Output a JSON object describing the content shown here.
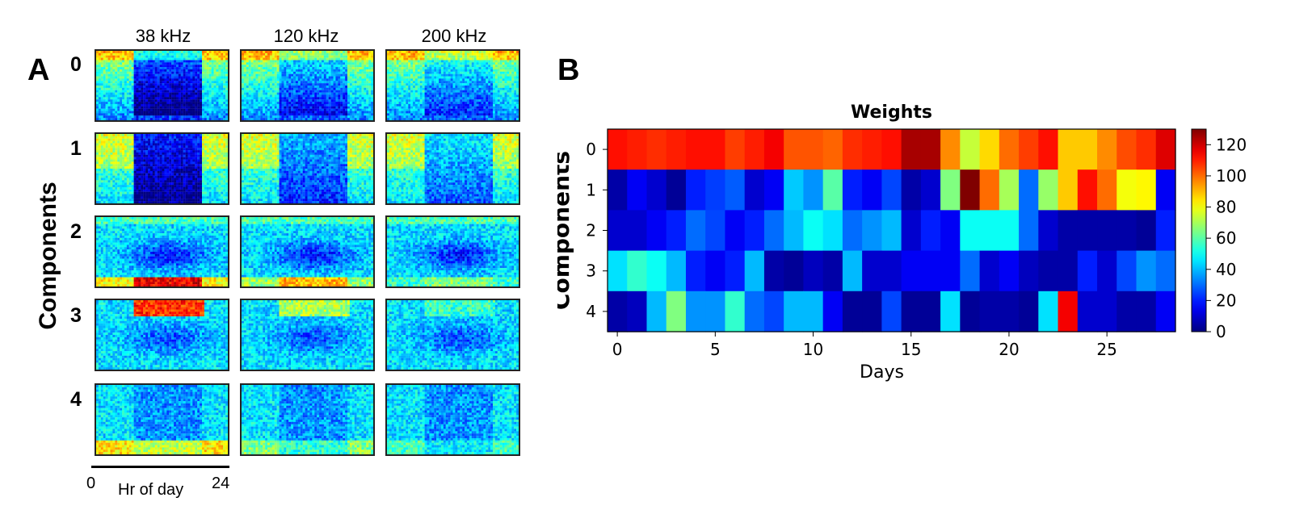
{
  "panelA": {
    "letter": "A",
    "frequencies": [
      "38 kHz",
      "120 kHz",
      "200 kHz"
    ],
    "component_labels": [
      "0",
      "1",
      "2",
      "3",
      "4"
    ],
    "ylabel": "Components",
    "scale_start": "0",
    "scale_end": "24",
    "scale_label": "Hr of day",
    "colormap": [
      "#00007f",
      "#0000ff",
      "#007fff",
      "#00ffff",
      "#7fff7f",
      "#ffff00",
      "#ff7f00",
      "#ff0000",
      "#7f0000"
    ]
  },
  "panelB": {
    "letter": "B"
  },
  "chart_data": {
    "type": "heatmap",
    "title": "Weights",
    "xlabel": "Days",
    "ylabel": "Components",
    "rows": [
      0,
      1,
      2,
      3,
      4
    ],
    "x_ticks": [
      "0",
      "5",
      "10",
      "15",
      "20",
      "25"
    ],
    "x_tick_values": [
      0,
      5,
      10,
      15,
      20,
      25
    ],
    "colorbar_ticks": [
      "0",
      "20",
      "40",
      "60",
      "80",
      "100",
      "120"
    ],
    "colorbar_tick_values": [
      0,
      20,
      40,
      60,
      80,
      100,
      120
    ],
    "vmin": 0,
    "vmax": 130,
    "colormap": "jet",
    "values": [
      [
        112,
        110,
        108,
        110,
        112,
        112,
        106,
        110,
        115,
        103,
        103,
        101,
        108,
        110,
        112,
        125,
        125,
        96,
        74,
        86,
        100,
        106,
        112,
        88,
        88,
        96,
        104,
        108,
        118
      ],
      [
        5,
        15,
        10,
        3,
        20,
        24,
        28,
        10,
        15,
        42,
        35,
        60,
        20,
        15,
        25,
        5,
        10,
        65,
        130,
        100,
        70,
        30,
        68,
        88,
        112,
        100,
        80,
        82,
        15
      ],
      [
        10,
        10,
        15,
        20,
        30,
        25,
        15,
        20,
        30,
        40,
        50,
        45,
        30,
        35,
        40,
        10,
        20,
        15,
        50,
        50,
        50,
        30,
        10,
        5,
        5,
        5,
        5,
        3,
        20
      ],
      [
        45,
        55,
        50,
        40,
        20,
        15,
        20,
        40,
        5,
        3,
        8,
        5,
        40,
        10,
        10,
        15,
        15,
        15,
        30,
        10,
        15,
        8,
        5,
        5,
        20,
        10,
        25,
        35,
        30
      ],
      [
        5,
        8,
        40,
        65,
        35,
        35,
        55,
        30,
        25,
        40,
        40,
        15,
        3,
        3,
        25,
        3,
        3,
        45,
        3,
        5,
        5,
        3,
        45,
        115,
        10,
        10,
        5,
        5,
        15
      ]
    ]
  }
}
